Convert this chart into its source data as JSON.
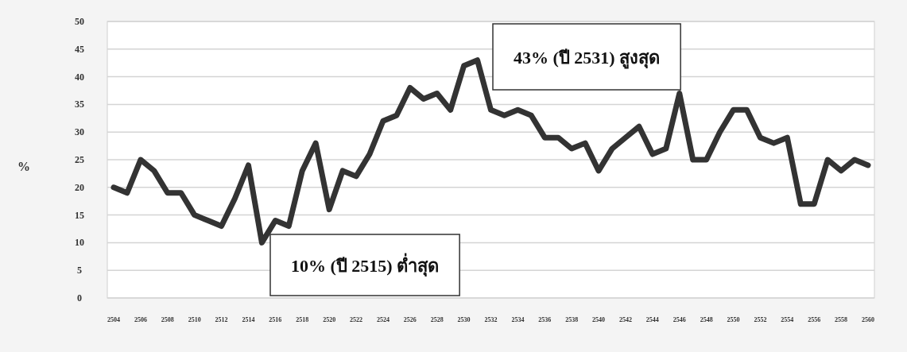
{
  "chart_data": {
    "type": "line",
    "ylabel": "%",
    "categories": [
      "2504",
      null,
      "2506",
      null,
      "2508",
      null,
      "2510",
      null,
      "2512",
      null,
      "2514",
      null,
      "2516",
      null,
      "2518",
      null,
      "2520",
      null,
      "2522",
      null,
      "2524",
      null,
      "2526",
      null,
      "2528",
      null,
      "2530",
      null,
      "2532",
      null,
      "2534",
      null,
      "2536",
      null,
      "2538",
      null,
      "2540",
      null,
      "2542",
      null,
      "2544",
      null,
      "2546",
      null,
      "2548",
      null,
      "2550",
      null,
      "2552",
      null,
      "2554",
      null,
      "2556",
      null,
      "2558",
      null,
      "2560"
    ],
    "series": [
      {
        "color": "#333333",
        "values": [
          20,
          19,
          25,
          23,
          19,
          19,
          15,
          14,
          13,
          18,
          24,
          10,
          14,
          13,
          23,
          28,
          16,
          23,
          22,
          26,
          32,
          33,
          38,
          36,
          37,
          34,
          42,
          43,
          34,
          33,
          34,
          33,
          29,
          29,
          27,
          28,
          23,
          27,
          29,
          31,
          26,
          27,
          37,
          25,
          25,
          30,
          34,
          34,
          29,
          28,
          29,
          17,
          17,
          25,
          23,
          25,
          24
        ]
      }
    ],
    "ylim": [
      0,
      50
    ],
    "yticks": [
      0,
      5,
      10,
      15,
      20,
      25,
      30,
      35,
      40,
      45,
      50
    ],
    "grid": "y",
    "marker": "none",
    "line_style": "solid",
    "annotations": [
      "43% (ปี 2531) สูงสุด",
      "10% (ปี 2515) ต่ำสุด"
    ]
  }
}
